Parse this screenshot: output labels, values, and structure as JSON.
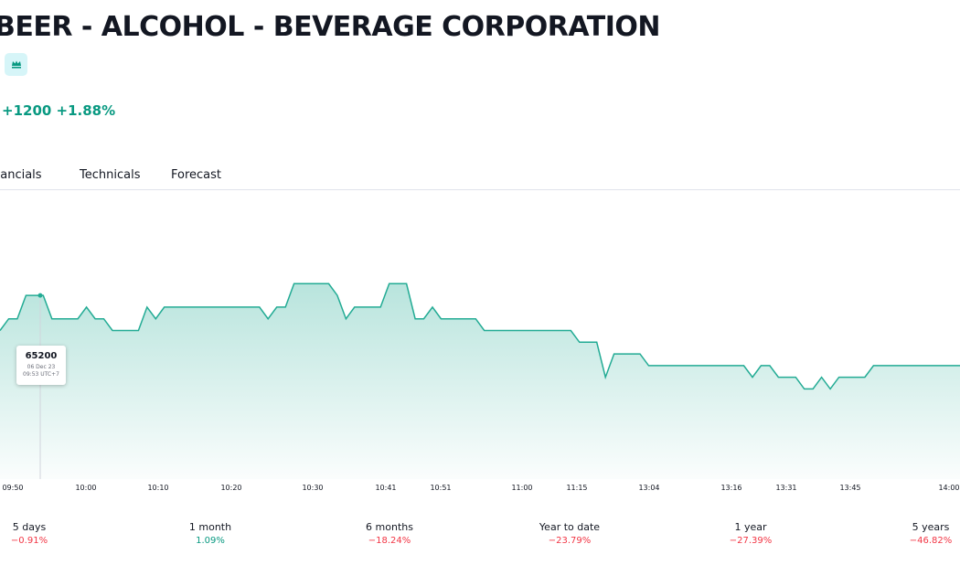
{
  "header": {
    "title": "BEER - ALCOHOL - BEVERAGE CORPORATION",
    "change": "+1200 +1.88%"
  },
  "tabs": [
    {
      "label": "nancials"
    },
    {
      "label": "Technicals"
    },
    {
      "label": "Forecast"
    }
  ],
  "tooltip": {
    "value": "65200",
    "date": "06 Dec 23",
    "time": "09:53 UTC+7"
  },
  "chart_data": {
    "type": "area",
    "x_labels": [
      "09:50",
      "10:00",
      "10:10",
      "10:20",
      "10:30",
      "10:41",
      "10:51",
      "11:00",
      "11:15",
      "13:04",
      "13:16",
      "13:31",
      "13:45",
      "14:00"
    ],
    "line_color": "#22ab94",
    "fill_color": "#22ab94",
    "values": [
      64900,
      65000,
      65000,
      65200,
      65200,
      65200,
      65000,
      65000,
      65000,
      65000,
      65100,
      65000,
      65000,
      64900,
      64900,
      64900,
      64900,
      65100,
      65000,
      65100,
      65100,
      65100,
      65100,
      65100,
      65100,
      65100,
      65100,
      65100,
      65100,
      65100,
      65100,
      65000,
      65100,
      65100,
      65300,
      65300,
      65300,
      65300,
      65300,
      65200,
      65000,
      65100,
      65100,
      65100,
      65100,
      65300,
      65300,
      65300,
      65000,
      65000,
      65100,
      65000,
      65000,
      65000,
      65000,
      65000,
      64900,
      64900,
      64900,
      64900,
      64900,
      64900,
      64900,
      64900,
      64900,
      64900,
      64900,
      64800,
      64800,
      64800,
      64500,
      64700,
      64700,
      64700,
      64700,
      64600,
      64600,
      64600,
      64600,
      64600,
      64600,
      64600,
      64600,
      64600,
      64600,
      64600,
      64600,
      64500,
      64600,
      64600,
      64500,
      64500,
      64500,
      64400,
      64400,
      64500,
      64400,
      64500,
      64500,
      64500,
      64500,
      64600,
      64600,
      64600,
      64600,
      64600,
      64600,
      64600,
      64600,
      64600,
      64600,
      64600
    ]
  },
  "periods": [
    {
      "label": "5 days",
      "value": "−0.91%",
      "color": "#f23645"
    },
    {
      "label": "1 month",
      "value": "1.09%",
      "color": "#089981"
    },
    {
      "label": "6 months",
      "value": "−18.24%",
      "color": "#f23645"
    },
    {
      "label": "Year to date",
      "value": "−23.79%",
      "color": "#f23645"
    },
    {
      "label": "1 year",
      "value": "−27.39%",
      "color": "#f23645"
    },
    {
      "label": "5 years",
      "value": "−46.82%",
      "color": "#f23645"
    }
  ],
  "icons": {
    "crown": "crown-icon"
  }
}
